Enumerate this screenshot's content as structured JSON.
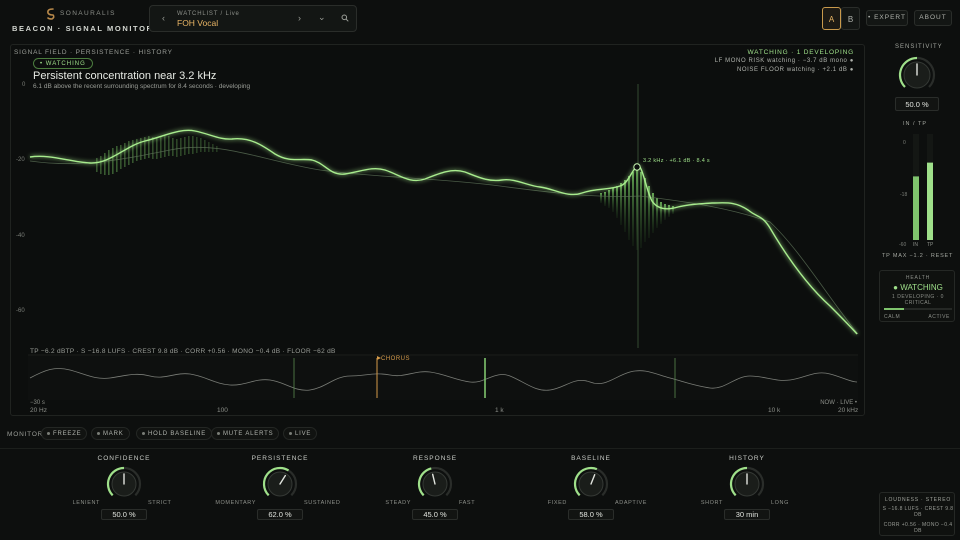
{
  "brand": {
    "name": "SONAURALIS",
    "app_title": "BEACON · SIGNAL MONITOR"
  },
  "watchlist": {
    "label": "WATCHLIST / Live",
    "value": "FOH Vocal",
    "prev": "‹",
    "next": "›",
    "dropdown": "⌄"
  },
  "header": {
    "btn_a": "A",
    "btn_b": "B",
    "expert": "• EXPERT",
    "about": "ABOUT"
  },
  "panel": {
    "tag": "SIGNAL FIELD · PERSISTENCE · HISTORY",
    "badge": "• WATCHING",
    "title": "Persistent concentration near 3.2 kHz",
    "detail": "6.1 dB above the recent surrounding spectrum for 8.4 seconds · developing",
    "status": "WATCHING · 1 DEVELOPING",
    "lf_status": "LF MONO RISK watching · −3.7 dB mono ●",
    "noise_status": "NOISE FLOOR watching · +2.1 dB ●",
    "marker_label": "3.2 kHz · +6.1 dB · 8.4 s",
    "y_ticks": [
      "0",
      "-20",
      "-40",
      "-60"
    ],
    "stats": "TP −6.2 dBTP   ·   S −16.8 LUFS   ·   CREST 9.8 dB   ·   CORR +0.56   ·   MONO −0.4 dB   ·   FLOOR −62 dB",
    "chorus": "CHORUS",
    "history_start": "−30 s",
    "history_end": "NOW · LIVE •",
    "freq_labels": [
      "20 Hz",
      "100",
      "1 k",
      "10 k",
      "20 kHz"
    ]
  },
  "monitor": {
    "label": "MONITOR",
    "buttons": [
      "FREEZE",
      "MARK",
      "HOLD BASELINE",
      "MUTE ALERTS",
      "LIVE"
    ]
  },
  "knobs": [
    {
      "title": "CONFIDENCE",
      "left": "LENIENT",
      "right": "STRICT",
      "value": "50.0 %",
      "level": 0.5
    },
    {
      "title": "PERSISTENCE",
      "left": "MOMENTARY",
      "right": "SUSTAINED",
      "value": "62.0 %",
      "level": 0.62
    },
    {
      "title": "RESPONSE",
      "left": "STEADY",
      "right": "FAST",
      "value": "45.0 %",
      "level": 0.45
    },
    {
      "title": "BASELINE",
      "left": "FIXED",
      "right": "ADAPTIVE",
      "value": "58.0 %",
      "level": 0.58
    },
    {
      "title": "HISTORY",
      "left": "SHORT",
      "right": "LONG",
      "value": "30 min",
      "level": 0.5
    }
  ],
  "sidebar": {
    "sensitivity_title": "SENSITIVITY",
    "sensitivity_value": "50.0 %",
    "sensitivity_level": 0.5,
    "meter_title": "IN  /  TP",
    "meter_ticks": [
      "0",
      "-18",
      "-60"
    ],
    "meter_in_label": "IN",
    "meter_tp_label": "TP",
    "meter_in_level": 0.6,
    "meter_tp_level": 0.73,
    "tp_max": "TP MAX −1.2 · RESET",
    "health_title": "HEALTH",
    "health_state": "WATCHING",
    "health_sub": "1 DEVELOPING · 0 CRITICAL",
    "health_level": 0.3,
    "health_calm": "CALM",
    "health_active": "ACTIVE",
    "loud_title": "LOUDNESS · STEREO",
    "loud_l1": "S −16.8 LUFS · CREST 9.8 DB",
    "loud_l2": "CORR +0.56 · MONO −0.4 DB"
  },
  "colors": {
    "accent": "#9fe08a",
    "amber": "#e9b565",
    "chorus": "#d49a4a"
  }
}
